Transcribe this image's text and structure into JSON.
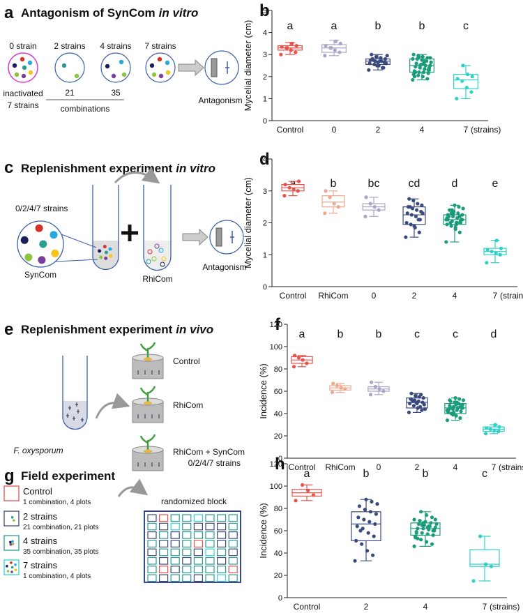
{
  "diagrams": {
    "a": {
      "label": "a",
      "title": "Antagonism of SynCom",
      "title_italic": "in vitro",
      "groups": [
        "0 strain",
        "2 strains",
        "4 strains",
        "7 strains"
      ],
      "inactivated": [
        "inactivated",
        "7 strains"
      ],
      "combos": [
        "21",
        "35"
      ],
      "combinations": "combinations",
      "result": "Antagonism"
    },
    "c": {
      "label": "c",
      "title": "Replenishment experiment",
      "title_italic": "in vitro",
      "strains": "0/2/4/7 strains",
      "syncom": "SynCom",
      "rhicom": "RhiCom",
      "result": "Antagonism"
    },
    "e": {
      "label": "e",
      "title": "Replenishment experiment",
      "title_italic": "in vivo",
      "pathogen": "F. oxysporum",
      "treatments": [
        "Control",
        "RhiCom",
        "RhiCom + SynCom"
      ],
      "strains": "0/2/4/7 strains"
    },
    "g": {
      "label": "g",
      "title": "Field experiment",
      "legend": [
        {
          "name": "Control",
          "detail": "1 combination, 4 plots"
        },
        {
          "name": "2 strains",
          "detail": "21 combination, 21 plots"
        },
        {
          "name": "4 strains",
          "detail": "35 combination, 35 plots"
        },
        {
          "name": "7 strains",
          "detail": "1 combination, 4 plots"
        }
      ],
      "block": "randomized block"
    }
  },
  "chart_data": [
    {
      "type": "box",
      "panel": "b",
      "ylabel": "Mycelial diameter (cm)",
      "categories": [
        "Control",
        "0",
        "2",
        "4",
        "7"
      ],
      "x_unit": "(strains)",
      "letters": [
        "a",
        "a",
        "b",
        "b",
        "c"
      ],
      "colors": [
        "#e8524a",
        "#a9a5c6",
        "#3b4a7e",
        "#1a9c7a",
        "#2fd1c6"
      ],
      "ylim": [
        0,
        5
      ],
      "yticks": [
        0,
        1,
        2,
        3,
        4,
        5
      ],
      "boxes": [
        {
          "min": 3.0,
          "q1": 3.2,
          "median": 3.3,
          "q3": 3.4,
          "max": 3.55,
          "points": [
            3.0,
            3.1,
            3.2,
            3.3,
            3.35,
            3.4,
            3.5,
            3.3
          ]
        },
        {
          "min": 2.95,
          "q1": 3.1,
          "median": 3.3,
          "q3": 3.45,
          "max": 3.65,
          "points": [
            2.95,
            3.1,
            3.2,
            3.3,
            3.4,
            3.5,
            3.6,
            3.3
          ]
        },
        {
          "min": 2.3,
          "q1": 2.55,
          "median": 2.7,
          "q3": 2.8,
          "max": 3.0,
          "points": [
            2.3,
            2.4,
            2.5,
            2.55,
            2.6,
            2.65,
            2.7,
            2.7,
            2.75,
            2.8,
            2.85,
            2.9,
            3.0,
            2.6,
            2.7,
            2.5,
            2.8,
            2.95,
            2.4,
            2.65,
            2.75
          ]
        },
        {
          "min": 1.85,
          "q1": 2.2,
          "median": 2.5,
          "q3": 2.8,
          "max": 3.0,
          "points": [
            1.85,
            1.9,
            2.0,
            2.05,
            2.1,
            2.15,
            2.2,
            2.2,
            2.25,
            2.3,
            2.35,
            2.4,
            2.45,
            2.5,
            2.5,
            2.55,
            2.6,
            2.65,
            2.7,
            2.75,
            2.8,
            2.8,
            2.85,
            2.9,
            2.95,
            3.0,
            2.3,
            2.6,
            2.9,
            2.0,
            2.4,
            2.7,
            2.5,
            2.2,
            2.85
          ]
        },
        {
          "min": 1.0,
          "q1": 1.45,
          "median": 1.85,
          "q3": 2.1,
          "max": 2.5,
          "points": [
            1.0,
            1.3,
            1.5,
            1.8,
            1.9,
            2.0,
            2.1,
            2.5
          ]
        }
      ]
    },
    {
      "type": "box",
      "panel": "d",
      "ylabel": "Mycelial diameter (cm)",
      "categories": [
        "Control",
        "RhiCom",
        "0",
        "2",
        "4",
        "7"
      ],
      "x_unit": "(strains)",
      "letters": [
        "a",
        "b",
        "bc",
        "cd",
        "d",
        "e"
      ],
      "colors": [
        "#e8524a",
        "#f0a890",
        "#a9a5c6",
        "#3b4a7e",
        "#1a9c7a",
        "#2fd1c6"
      ],
      "ylim": [
        0,
        4
      ],
      "yticks": [
        0,
        1,
        2,
        3,
        4
      ],
      "boxes": [
        {
          "min": 2.85,
          "q1": 3.0,
          "median": 3.1,
          "q3": 3.2,
          "max": 3.3,
          "points": [
            2.85,
            3.0,
            3.05,
            3.1,
            3.2,
            3.3
          ]
        },
        {
          "min": 2.3,
          "q1": 2.5,
          "median": 2.65,
          "q3": 2.85,
          "max": 3.0,
          "points": [
            2.3,
            2.5,
            2.6,
            2.8,
            3.0
          ]
        },
        {
          "min": 2.2,
          "q1": 2.4,
          "median": 2.5,
          "q3": 2.6,
          "max": 2.8,
          "points": [
            2.2,
            2.4,
            2.5,
            2.6,
            2.8
          ]
        },
        {
          "min": 1.55,
          "q1": 1.95,
          "median": 2.25,
          "q3": 2.5,
          "max": 2.75,
          "points": [
            1.55,
            1.7,
            1.85,
            1.95,
            2.0,
            2.1,
            2.2,
            2.25,
            2.3,
            2.35,
            2.4,
            2.45,
            2.5,
            2.55,
            2.6,
            2.7,
            2.75,
            2.3,
            2.1,
            1.9,
            2.5
          ]
        },
        {
          "min": 1.4,
          "q1": 1.95,
          "median": 2.1,
          "q3": 2.25,
          "max": 2.55,
          "points": [
            1.4,
            1.7,
            1.8,
            1.9,
            1.95,
            2.0,
            2.0,
            2.05,
            2.1,
            2.1,
            2.15,
            2.2,
            2.2,
            2.25,
            2.3,
            2.35,
            2.4,
            2.45,
            2.5,
            2.55,
            2.0,
            2.1,
            2.2,
            1.85,
            2.3,
            2.15,
            2.05,
            1.95,
            2.4,
            2.25,
            2.1,
            2.0,
            2.3,
            2.2,
            2.1
          ]
        },
        {
          "min": 0.75,
          "q1": 1.0,
          "median": 1.1,
          "q3": 1.2,
          "max": 1.45,
          "points": [
            0.75,
            1.0,
            1.05,
            1.1,
            1.15,
            1.2,
            1.45
          ]
        }
      ]
    },
    {
      "type": "box",
      "panel": "f",
      "ylabel": "Incidence (%)",
      "categories": [
        "Control",
        "RhiCom",
        "0",
        "2",
        "4",
        "7"
      ],
      "x_unit": "(strains)",
      "letters": [
        "a",
        "b",
        "b",
        "c",
        "c",
        "d"
      ],
      "colors": [
        "#e8524a",
        "#f0a890",
        "#a9a5c6",
        "#3b4a7e",
        "#1a9c7a",
        "#2fd1c6"
      ],
      "ylim": [
        0,
        120
      ],
      "yticks": [
        0,
        20,
        40,
        60,
        80,
        100,
        120
      ],
      "boxes": [
        {
          "min": 82,
          "q1": 85,
          "median": 88,
          "q3": 91,
          "max": 92,
          "points": [
            82,
            85,
            88,
            90,
            92
          ]
        },
        {
          "min": 59,
          "q1": 61,
          "median": 63,
          "q3": 65,
          "max": 67,
          "points": [
            59,
            62,
            63,
            65,
            67
          ]
        },
        {
          "min": 57,
          "q1": 60,
          "median": 62,
          "q3": 64,
          "max": 68,
          "points": [
            57,
            60,
            62,
            64,
            68
          ]
        },
        {
          "min": 41,
          "q1": 45,
          "median": 50,
          "q3": 54,
          "max": 58,
          "points": [
            41,
            43,
            45,
            47,
            49,
            50,
            51,
            52,
            53,
            54,
            55,
            56,
            58,
            48,
            46,
            50,
            52,
            44,
            57,
            49,
            51
          ]
        },
        {
          "min": 34,
          "q1": 40,
          "median": 45,
          "q3": 49,
          "max": 54,
          "points": [
            34,
            36,
            38,
            40,
            41,
            42,
            43,
            44,
            44,
            45,
            45,
            46,
            47,
            48,
            49,
            50,
            51,
            52,
            53,
            54,
            40,
            43,
            46,
            48,
            45,
            42,
            47,
            50,
            39,
            44,
            46,
            49,
            41,
            52,
            45
          ]
        },
        {
          "min": 22,
          "q1": 24,
          "median": 26,
          "q3": 28,
          "max": 30,
          "points": [
            22,
            24,
            25,
            26,
            27,
            28,
            30
          ]
        }
      ]
    },
    {
      "type": "box",
      "panel": "h",
      "ylabel": "Incidence (%)",
      "categories": [
        "Control",
        "2",
        "4",
        "7"
      ],
      "x_unit": "(strains)",
      "letters": [
        "a",
        "b",
        "b",
        "c"
      ],
      "colors": [
        "#e8524a",
        "#3b4a7e",
        "#1a9c7a",
        "#2fd1c6"
      ],
      "ylim": [
        0,
        120
      ],
      "yticks": [
        0,
        20,
        40,
        60,
        80,
        100,
        120
      ],
      "boxes": [
        {
          "min": 87,
          "q1": 91,
          "median": 94,
          "q3": 97,
          "max": 101,
          "points": [
            87,
            92,
            96,
            101
          ]
        },
        {
          "min": 33,
          "q1": 51,
          "median": 66,
          "q3": 77,
          "max": 88,
          "points": [
            33,
            38,
            42,
            48,
            51,
            55,
            58,
            62,
            64,
            66,
            68,
            70,
            72,
            75,
            77,
            79,
            82,
            84,
            86,
            88,
            60
          ]
        },
        {
          "min": 46,
          "q1": 56,
          "median": 62,
          "q3": 67,
          "max": 77,
          "points": [
            46,
            48,
            50,
            52,
            54,
            56,
            57,
            58,
            59,
            60,
            61,
            62,
            62,
            63,
            64,
            65,
            66,
            66,
            67,
            68,
            69,
            70,
            72,
            74,
            77,
            55,
            60,
            63,
            65,
            58,
            61,
            64,
            67,
            53,
            70
          ]
        },
        {
          "min": 15,
          "q1": 28,
          "median": 30,
          "q3": 43,
          "max": 55,
          "points": [
            15,
            28,
            30,
            55
          ]
        }
      ]
    }
  ]
}
